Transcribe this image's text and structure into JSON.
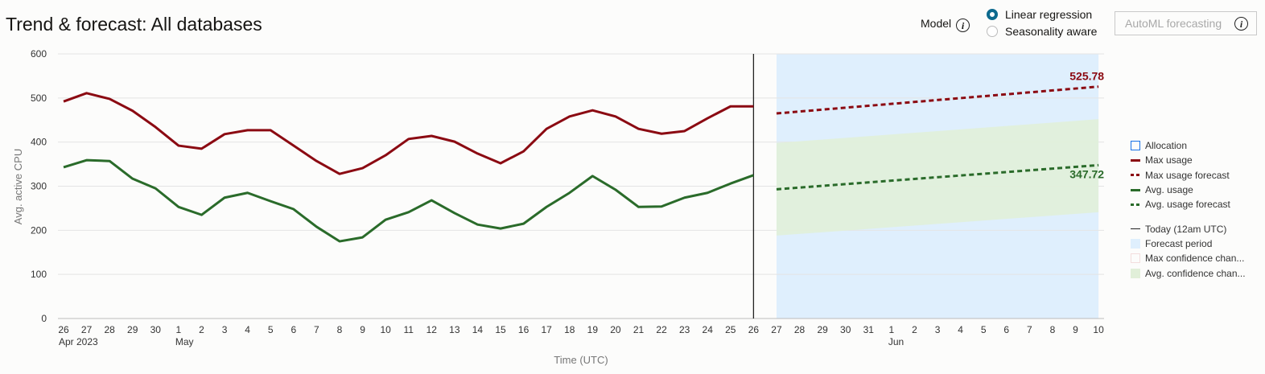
{
  "header": {
    "title": "Trend & forecast: All databases",
    "model_label": "Model",
    "model_options": [
      {
        "label": "Linear regression",
        "selected": true
      },
      {
        "label": "Seasonality aware",
        "selected": false
      }
    ],
    "automl_button": "AutoML forecasting",
    "info_icon": "i"
  },
  "chart_data": {
    "type": "line",
    "xlabel": "Time (UTC)",
    "ylabel": "Avg. active CPU",
    "ylim": [
      0,
      600
    ],
    "yticks": [
      0,
      100,
      200,
      300,
      400,
      500,
      600
    ],
    "grid": true,
    "legend_placement": "right",
    "x_tick_labels": [
      "26",
      "27",
      "28",
      "29",
      "30",
      "1",
      "2",
      "3",
      "4",
      "5",
      "6",
      "7",
      "8",
      "9",
      "10",
      "11",
      "12",
      "13",
      "14",
      "15",
      "16",
      "17",
      "18",
      "19",
      "20",
      "21",
      "22",
      "23",
      "24",
      "25",
      "26",
      "27",
      "28",
      "29",
      "30",
      "31",
      "1",
      "2",
      "3",
      "4",
      "5",
      "6",
      "7",
      "8",
      "9",
      "10"
    ],
    "x_sub_labels": [
      {
        "at": "26",
        "label": "Apr 2023"
      },
      {
        "at_index": 5,
        "label": "May"
      },
      {
        "at_index": 36,
        "label": "Jun"
      }
    ],
    "x_dates": [
      "2023-04-26",
      "2023-06-10"
    ],
    "today": "2023-05-26",
    "forecast_period": [
      "2023-05-27",
      "2023-06-10"
    ],
    "series": [
      {
        "name": "Max usage",
        "color": "#8b0a12",
        "style": "solid",
        "start": "2023-04-26",
        "values": [
          492,
          511,
          498,
          471,
          434,
          392,
          385,
          418,
          427,
          427,
          392,
          357,
          328,
          341,
          370,
          407,
          414,
          401,
          374,
          352,
          379,
          430,
          458,
          472,
          458,
          430,
          419,
          425,
          454,
          481,
          481
        ]
      },
      {
        "name": "Avg. usage",
        "color": "#2a6b2a",
        "style": "solid",
        "start": "2023-04-26",
        "values": [
          343,
          359,
          357,
          317,
          295,
          253,
          235,
          274,
          285,
          266,
          248,
          208,
          175,
          184,
          224,
          241,
          268,
          239,
          213,
          204,
          215,
          253,
          285,
          323,
          292,
          253,
          254,
          274,
          285,
          306,
          325
        ]
      },
      {
        "name": "Max usage forecast",
        "color": "#8b0a12",
        "style": "dashed",
        "start": "2023-05-27",
        "end": "2023-06-10",
        "from": 465,
        "to": 525.78,
        "end_label": "525.78"
      },
      {
        "name": "Avg. usage forecast",
        "color": "#2a6b2a",
        "style": "dashed",
        "start": "2023-05-27",
        "end": "2023-06-10",
        "from": 293,
        "to": 347.72,
        "end_label": "347.72"
      }
    ],
    "avg_confidence_band": {
      "start": {
        "low": 188,
        "high": 398
      },
      "end": {
        "low": 241,
        "high": 452
      },
      "color": "#e1efd9"
    },
    "legend": [
      {
        "label": "Allocation",
        "kind": "box",
        "color": "#1a73e8"
      },
      {
        "label": "Max usage",
        "kind": "line",
        "color": "#8b0a12"
      },
      {
        "label": "Max usage forecast",
        "kind": "dash",
        "color": "#8b0a12"
      },
      {
        "label": "Avg. usage",
        "kind": "line",
        "color": "#2a6b2a"
      },
      {
        "label": "Avg. usage forecast",
        "kind": "dash",
        "color": "#2a6b2a"
      },
      {
        "label": "Today (12am UTC)",
        "kind": "thin",
        "color": "#222222"
      },
      {
        "label": "Forecast period",
        "kind": "fill",
        "color": "#dfeffd"
      },
      {
        "label": "Max confidence chan...",
        "kind": "fillbox",
        "color": "#f3dede"
      },
      {
        "label": "Avg. confidence chan...",
        "kind": "fill",
        "color": "#e1efd9"
      }
    ]
  }
}
